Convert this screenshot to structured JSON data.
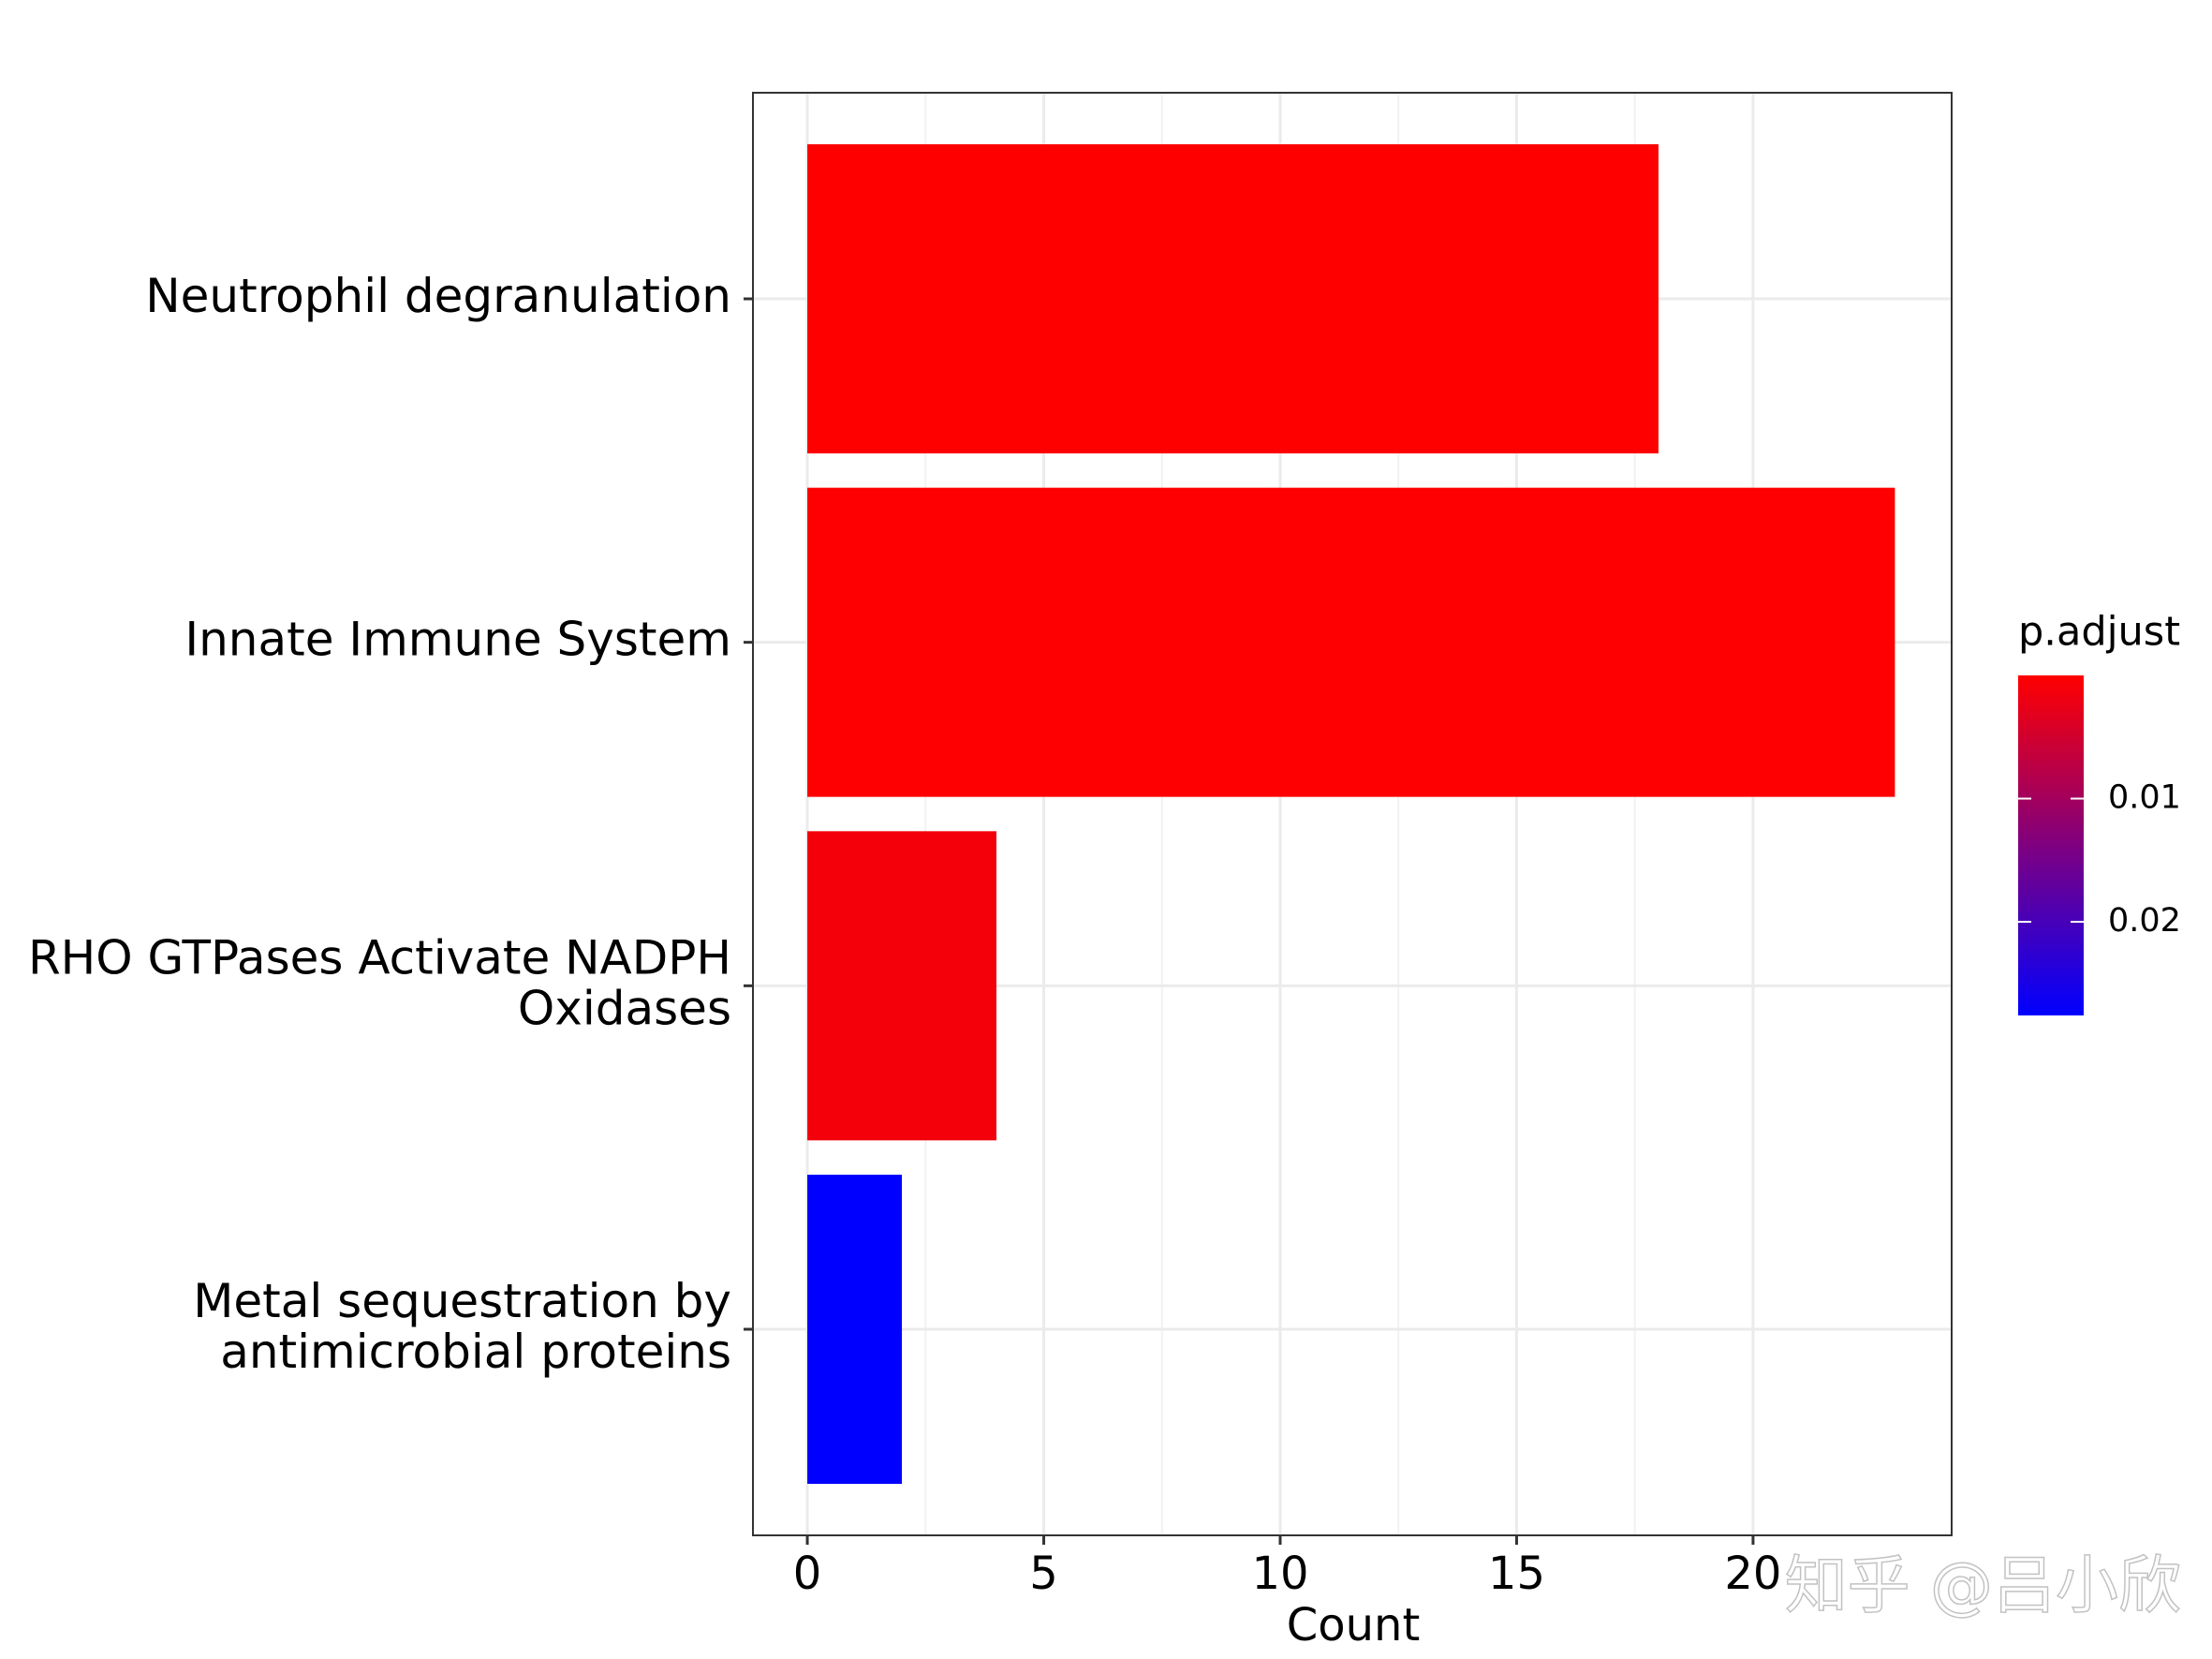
{
  "chart_data": {
    "type": "barh",
    "categories": [
      "Neutrophil degranulation",
      "Innate Immune System",
      "RHO GTPases Activate NADPH Oxidases",
      "Metal sequestration by antimicrobial proteins"
    ],
    "values": [
      18,
      23,
      4,
      2
    ],
    "p_adjust": [
      5e-05,
      0.0001,
      0.0012,
      0.0276
    ],
    "x_label": "Count",
    "xlim": [
      -1.15,
      24.2
    ],
    "xticks": [
      0,
      5,
      10,
      15,
      20
    ],
    "grid": true,
    "colorbar": {
      "title": "p.adjust",
      "lim": [
        0,
        0.0276
      ],
      "ticks": [
        0.01,
        0.02
      ],
      "low_color": "#FF0000",
      "high_color": "#0000FF"
    },
    "watermark": "知乎 @吕小欣"
  }
}
